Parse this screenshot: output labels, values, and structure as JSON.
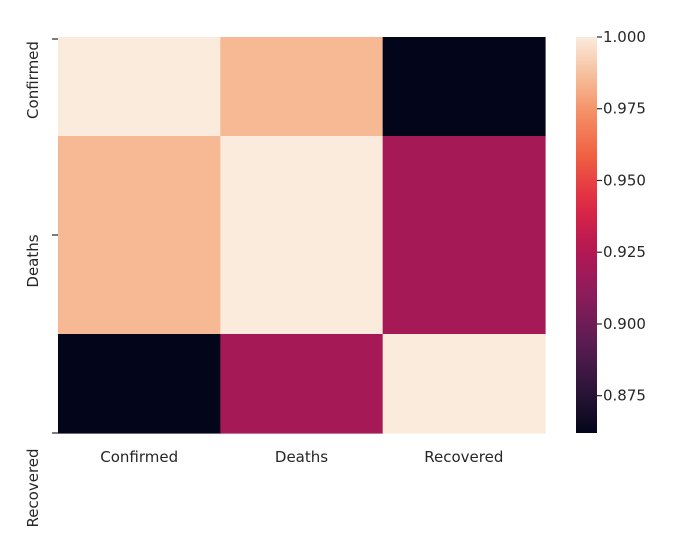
{
  "chart_data": {
    "type": "heatmap",
    "title": "",
    "xlabel": "",
    "ylabel": "",
    "x_categories": [
      "Confirmed",
      "Deaths",
      "Recovered"
    ],
    "y_categories": [
      "Confirmed",
      "Deaths",
      "Recovered"
    ],
    "y_tick_labels_shown": [
      "Confirmed",
      "Deaths",
      "Recovered"
    ],
    "row_heights_relative": [
      1,
      2,
      1
    ],
    "matrix": [
      [
        1.0,
        0.985,
        0.862
      ],
      [
        0.985,
        1.0,
        0.92
      ],
      [
        0.862,
        0.92,
        1.0
      ]
    ],
    "colorbar": {
      "colormap": "rocket",
      "vmin": 0.862,
      "vmax": 1.0,
      "ticks": [
        0.875,
        0.9,
        0.925,
        0.95,
        0.975,
        1.0
      ],
      "tick_labels": [
        "0.875",
        "0.900",
        "0.925",
        "0.950",
        "0.975",
        "1.000"
      ]
    },
    "grid": false,
    "legend": "colorbar-right"
  }
}
